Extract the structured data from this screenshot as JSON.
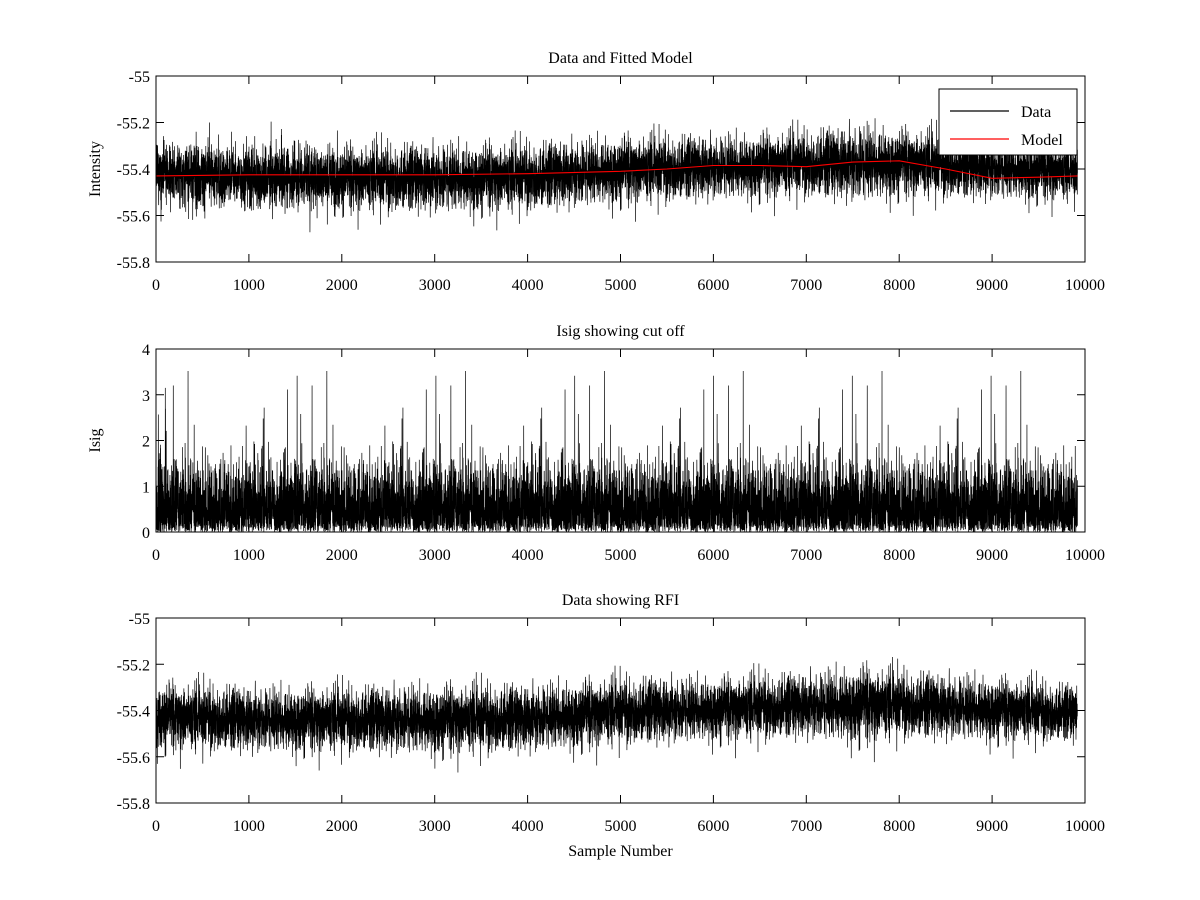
{
  "figure": {
    "background": "#ffffff"
  },
  "chart_data": [
    {
      "type": "line",
      "title": "Data and Fitted Model",
      "xlabel": "",
      "ylabel": "Intensity",
      "xlim": [
        0,
        10000
      ],
      "ylim": [
        -55.8,
        -55
      ],
      "xticks": [
        0,
        1000,
        2000,
        3000,
        4000,
        5000,
        6000,
        7000,
        8000,
        9000,
        10000
      ],
      "yticks": [
        -55.8,
        -55.6,
        -55.4,
        -55.2,
        -55
      ],
      "xtick_labels": [
        "0",
        "1000",
        "2000",
        "3000",
        "4000",
        "5000",
        "6000",
        "7000",
        "8000",
        "9000",
        "10000"
      ],
      "ytick_labels": [
        "-55.8",
        "-55.6",
        "-55.4",
        "-55.2",
        "-55"
      ],
      "grid": false,
      "legend": {
        "placement": "top-right",
        "entries": [
          "Data",
          "Model"
        ]
      },
      "series": [
        {
          "name": "Data",
          "color": "#000000",
          "style": "noise",
          "x_range": [
            0,
            9920
          ],
          "n_points": 9920,
          "envelope_x": [
            0,
            1000,
            2000,
            3000,
            4000,
            5000,
            6000,
            7000,
            7600,
            8000,
            9000,
            9920
          ],
          "envelope_low": [
            -55.62,
            -55.63,
            -55.63,
            -55.64,
            -55.63,
            -55.6,
            -55.58,
            -55.57,
            -55.6,
            -55.57,
            -55.58,
            -55.58
          ],
          "envelope_high": [
            -55.22,
            -55.24,
            -55.24,
            -55.23,
            -55.23,
            -55.2,
            -55.2,
            -55.18,
            -55.14,
            -55.17,
            -55.2,
            -55.24
          ]
        },
        {
          "name": "Model",
          "color": "#ff0000",
          "x": [
            0,
            1000,
            2000,
            3000,
            4000,
            5000,
            5500,
            6000,
            6500,
            7000,
            7500,
            8000,
            8500,
            9000,
            9500,
            9920
          ],
          "y": [
            -55.43,
            -55.425,
            -55.425,
            -55.425,
            -55.42,
            -55.41,
            -55.4,
            -55.385,
            -55.385,
            -55.39,
            -55.37,
            -55.365,
            -55.4,
            -55.44,
            -55.435,
            -55.43
          ]
        }
      ]
    },
    {
      "type": "line",
      "title": "Isig showing cut off",
      "xlabel": "",
      "ylabel": "Isig",
      "xlim": [
        0,
        10000
      ],
      "ylim": [
        0,
        4
      ],
      "xticks": [
        0,
        1000,
        2000,
        3000,
        4000,
        5000,
        6000,
        7000,
        8000,
        9000,
        10000
      ],
      "yticks": [
        0,
        1,
        2,
        3,
        4
      ],
      "xtick_labels": [
        "0",
        "1000",
        "2000",
        "3000",
        "4000",
        "5000",
        "6000",
        "7000",
        "8000",
        "9000",
        "10000"
      ],
      "ytick_labels": [
        "0",
        "1",
        "2",
        "3",
        "4"
      ],
      "grid": false,
      "series": [
        {
          "color": "#000000",
          "style": "abs-noise",
          "x_range": [
            0,
            9920
          ],
          "n_points": 9920,
          "typical_max": 1.6,
          "spike_max": 3.7
        }
      ]
    },
    {
      "type": "line",
      "title": "Data showing RFI",
      "xlabel": "Sample Number",
      "ylabel": "",
      "xlim": [
        0,
        10000
      ],
      "ylim": [
        -55.8,
        -55
      ],
      "xticks": [
        0,
        1000,
        2000,
        3000,
        4000,
        5000,
        6000,
        7000,
        8000,
        9000,
        10000
      ],
      "yticks": [
        -55.8,
        -55.6,
        -55.4,
        -55.2,
        -55
      ],
      "xtick_labels": [
        "0",
        "1000",
        "2000",
        "3000",
        "4000",
        "5000",
        "6000",
        "7000",
        "8000",
        "9000",
        "10000"
      ],
      "ytick_labels": [
        "-55.8",
        "-55.6",
        "-55.4",
        "-55.2",
        "-55"
      ],
      "grid": false,
      "series": [
        {
          "color": "#000000",
          "style": "noise",
          "x_range": [
            0,
            9920
          ],
          "n_points": 9920,
          "envelope_x": [
            0,
            1000,
            2000,
            3000,
            4000,
            5000,
            6000,
            7000,
            7600,
            8000,
            9000,
            9920
          ],
          "envelope_low": [
            -55.62,
            -55.63,
            -55.63,
            -55.64,
            -55.63,
            -55.6,
            -55.58,
            -55.57,
            -55.6,
            -55.57,
            -55.58,
            -55.58
          ],
          "envelope_high": [
            -55.22,
            -55.24,
            -55.24,
            -55.23,
            -55.23,
            -55.2,
            -55.2,
            -55.18,
            -55.14,
            -55.17,
            -55.2,
            -55.24
          ]
        }
      ]
    }
  ]
}
